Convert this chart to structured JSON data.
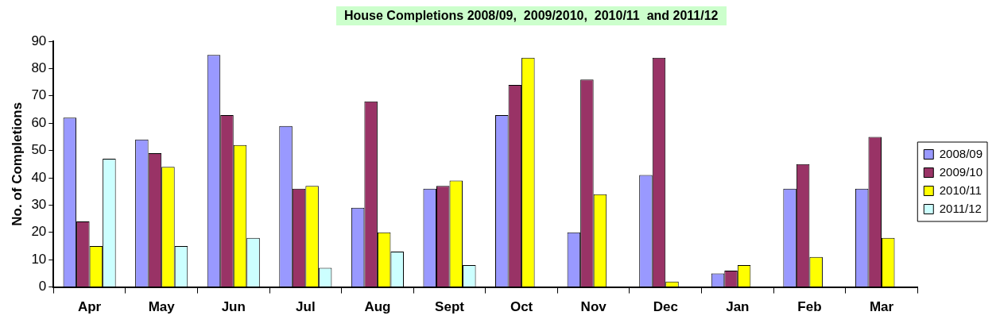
{
  "chart_data": {
    "type": "bar",
    "title": "House Completions 2008/09,  2009/2010,  2010/11  and 2011/12",
    "ylabel": "No. of Completions",
    "categories": [
      "Apr",
      "May",
      "Jun",
      "Jul",
      "Aug",
      "Sept",
      "Oct",
      "Nov",
      "Dec",
      "Jan",
      "Feb",
      "Mar"
    ],
    "series": [
      {
        "name": "2008/09",
        "color": "#9999ff",
        "values": [
          62,
          54,
          85,
          59,
          29,
          36,
          63,
          20,
          41,
          5,
          36,
          36
        ]
      },
      {
        "name": "2009/10",
        "color": "#993366",
        "values": [
          24,
          49,
          63,
          36,
          68,
          37,
          74,
          76,
          84,
          6,
          45,
          55
        ]
      },
      {
        "name": "2010/11",
        "color": "#ffff00",
        "values": [
          15,
          44,
          52,
          37,
          20,
          39,
          84,
          34,
          2,
          8,
          11,
          18
        ]
      },
      {
        "name": "2011/12",
        "color": "#ccffff",
        "values": [
          47,
          15,
          18,
          7,
          13,
          8,
          null,
          null,
          null,
          null,
          null,
          null
        ]
      }
    ],
    "ylim": [
      0,
      90
    ],
    "yticks": [
      0,
      10,
      20,
      30,
      40,
      50,
      60,
      70,
      80,
      90
    ],
    "grid": false,
    "legend": "right"
  }
}
